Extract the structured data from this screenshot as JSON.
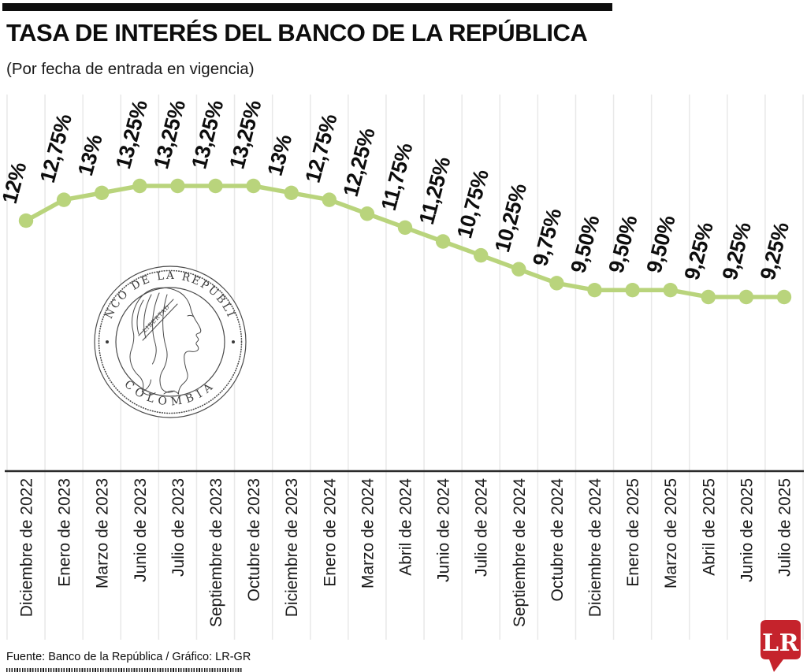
{
  "header": {
    "title": "TASA DE INTERÉS DEL BANCO DE LA REPÚBLICA",
    "subtitle": "(Por fecha de entrada en vigencia)"
  },
  "chart_data": {
    "type": "line",
    "title": "TASA DE INTERÉS DEL BANCO DE LA REPÚBLICA",
    "subtitle": "(Por fecha de entrada en vigencia)",
    "categories": [
      "Diciembre de 2022",
      "Enero de 2023",
      "Marzo de 2023",
      "Junio de 2023",
      "Julio de 2023",
      "Septiembre de 2023",
      "Octubre de 2023",
      "Diciembre de 2023",
      "Enero de 2024",
      "Marzo de 2024",
      "Abril de 2024",
      "Junio de 2024",
      "Julio de 2024",
      "Septiembre de 2024",
      "Octubre de 2024",
      "Diciembre de 2024",
      "Enero de 2025",
      "Marzo de 2025",
      "Abril de 2025",
      "Junio de 2025",
      "Julio de 2025"
    ],
    "values": [
      12,
      12.75,
      13,
      13.25,
      13.25,
      13.25,
      13.25,
      13,
      12.75,
      12.25,
      11.75,
      11.25,
      10.75,
      10.25,
      9.75,
      9.5,
      9.5,
      9.5,
      9.25,
      9.25,
      9.25
    ],
    "value_labels": [
      "12%",
      "12,75%",
      "13%",
      "13,25%",
      "13,25%",
      "13,25%",
      "13,25%",
      "13%",
      "12,75%",
      "12,25%",
      "11,75%",
      "11,25%",
      "10,75%",
      "10,25%",
      "9,75%",
      "9,50%",
      "9,50%",
      "9,50%",
      "9,25%",
      "9,25%",
      "9,25%"
    ],
    "xlabel": "",
    "ylabel": "",
    "ylim": [
      9,
      13.5
    ],
    "grid": true,
    "grid_orientation": "vertical",
    "legend_position": "none",
    "line_color": "#b9d47c",
    "marker_color": "#b9d47c",
    "grid_color": "#e8e8e8",
    "axis_color": "#2b2b2b",
    "label_color": "#0d0d0d"
  },
  "seal": {
    "top_text": "BANCO DE LA REPUBLICA",
    "bottom_text": "COLOMBIA",
    "band_text": "LIBERTAD"
  },
  "footer": {
    "source": "Fuente: Banco de la República / Gráfico: LR-GR"
  },
  "logo": {
    "label": "LR",
    "color": "#c5232c"
  }
}
